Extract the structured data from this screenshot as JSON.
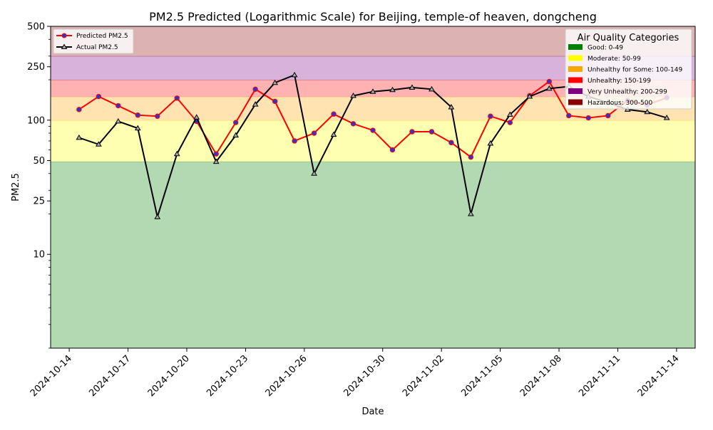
{
  "chart_data": {
    "type": "line",
    "title": "PM2.5 Predicted (Logarithmic Scale) for Beijing, temple-of heaven, dongcheng",
    "xlabel": "Date",
    "ylabel": "PM2.5",
    "yscale": "log",
    "ylim": [
      2,
      500
    ],
    "xlim": [
      "2024-10-13.05",
      "2024-11-14.95"
    ],
    "grid": false,
    "x_ticks": [
      "2024-10-14",
      "2024-10-17",
      "2024-10-20",
      "2024-10-23",
      "2024-10-26",
      "2024-10-30",
      "2024-11-02",
      "2024-11-05",
      "2024-11-08",
      "2024-11-11",
      "2024-11-14"
    ],
    "y_ticks": [
      10,
      25,
      50,
      100,
      250,
      500
    ],
    "y_tick_labels": [
      "10",
      "25",
      "50",
      "100",
      "250",
      "500"
    ],
    "aqi_bands": [
      {
        "label": "Good: 0-49",
        "from": 0,
        "to": 49,
        "color": "#008000"
      },
      {
        "label": "Moderate: 50-99",
        "from": 49,
        "to": 99,
        "color": "#ffff00"
      },
      {
        "label": "Unhealthy for Some: 100-149",
        "from": 99,
        "to": 149,
        "color": "#ffa500"
      },
      {
        "label": "Unhealthy: 150-199",
        "from": 149,
        "to": 199,
        "color": "#ff0000"
      },
      {
        "label": "Very Unhealthy: 200-299",
        "from": 199,
        "to": 299,
        "color": "#800080"
      },
      {
        "label": "Hazardous: 300-500",
        "from": 299,
        "to": 500,
        "color": "#8b0000"
      }
    ],
    "series_legend": {
      "predicted": "Predicted PM2.5",
      "actual": "Actual PM2.5"
    },
    "category_legend_title": "Air Quality Categories",
    "series": [
      {
        "name": "Predicted PM2.5",
        "color": "#ff0000",
        "marker_color": "#3333cc",
        "x": [
          "2024-10-14.5",
          "2024-10-15.5",
          "2024-10-16.5",
          "2024-10-17.5",
          "2024-10-18.5",
          "2024-10-19.5",
          "2024-10-20.5",
          "2024-10-21.5",
          "2024-10-22.5",
          "2024-10-23.5",
          "2024-10-24.5",
          "2024-10-25.5",
          "2024-10-26.5",
          "2024-10-27.5",
          "2024-10-28.5",
          "2024-10-29.5",
          "2024-10-30.5",
          "2024-10-31.5",
          "2024-11-01.5",
          "2024-11-02.5",
          "2024-11-03.5",
          "2024-11-04.5",
          "2024-11-05.5",
          "2024-11-06.5",
          "2024-11-07.5",
          "2024-11-08.5",
          "2024-11-09.5",
          "2024-11-10.5",
          "2024-11-11.5",
          "2024-11-12.5",
          "2024-11-13.5"
        ],
        "values": [
          120,
          150,
          128,
          109,
          107,
          146,
          98,
          56,
          96,
          170,
          138,
          70,
          80,
          111,
          94,
          84,
          60,
          82,
          82,
          68,
          53,
          107,
          96,
          152,
          194,
          108,
          104,
          108,
          140,
          130,
          147
        ]
      },
      {
        "name": "Actual PM2.5",
        "color": "#000000",
        "marker_color": "#aaaaaa",
        "x": [
          "2024-10-14.5",
          "2024-10-15.5",
          "2024-10-16.5",
          "2024-10-17.5",
          "2024-10-18.5",
          "2024-10-19.5",
          "2024-10-20.5",
          "2024-10-21.5",
          "2024-10-22.5",
          "2024-10-23.5",
          "2024-10-24.5",
          "2024-10-25.5",
          "2024-10-26.5",
          "2024-10-27.5",
          "2024-10-28.5",
          "2024-10-29.5",
          "2024-10-30.5",
          "2024-10-31.5",
          "2024-11-01.5",
          "2024-11-02.5",
          "2024-11-03.5",
          "2024-11-04.5",
          "2024-11-05.5",
          "2024-11-06.5",
          "2024-11-07.5",
          "2024-11-08.5",
          "2024-11-09.5",
          "2024-11-10.5",
          "2024-11-11.5",
          "2024-11-12.5",
          "2024-11-13.5"
        ],
        "values": [
          74,
          66,
          98,
          87,
          19,
          56,
          105,
          49,
          77,
          131,
          190,
          217,
          40,
          78,
          152,
          163,
          168,
          175,
          170,
          125,
          20,
          67,
          110,
          150,
          172,
          178,
          150,
          135,
          120,
          115,
          104
        ]
      }
    ]
  }
}
